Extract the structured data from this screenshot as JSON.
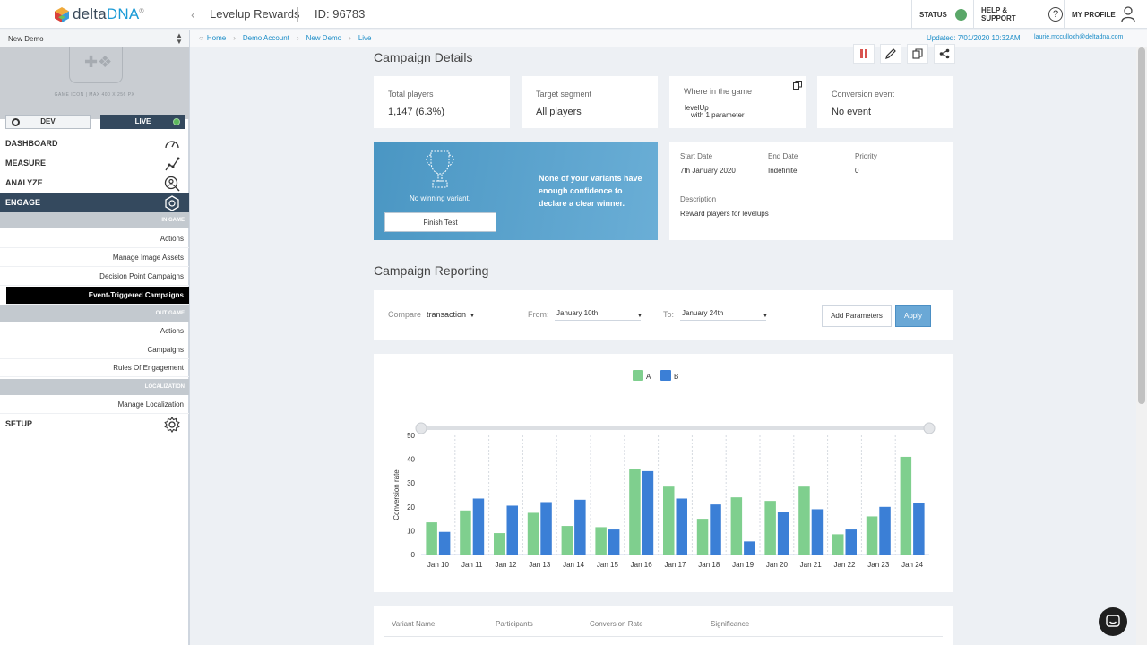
{
  "header": {
    "logo": {
      "prefix": "delta",
      "suffix": "DNA",
      "mark": "®"
    },
    "app_title": "Levelup Rewards",
    "app_id": "ID: 96783",
    "status_label": "STATUS",
    "status_color": "#5aa769",
    "help_label": "HELP & SUPPORT",
    "profile_label": "MY PROFILE"
  },
  "subbar": {
    "breadcrumbs": [
      "Home",
      "Demo Account",
      "New Demo",
      "Live"
    ],
    "updated": "Updated: 7/01/2020 10:32AM",
    "user_email": "laurie.mcculloch@deltadna.com"
  },
  "sidebar": {
    "game_name": "New Demo",
    "game_icon_caption": "GAME ICON  |  MAX 400 X 256 PX",
    "env_dev": "DEV",
    "env_live": "LIVE",
    "nav": {
      "dashboard": "DASHBOARD",
      "measure": "MEASURE",
      "analyze": "ANALYZE",
      "engage": "ENGAGE",
      "setup": "SETUP"
    },
    "sections": {
      "in_game": "IN GAME",
      "out_game": "OUT GAME",
      "localization": "LOCALIZATION"
    },
    "in_game_items": [
      "Actions",
      "Manage Image Assets",
      "Decision Point Campaigns",
      "Event-Triggered Campaigns"
    ],
    "out_game_items": [
      "Actions",
      "Campaigns",
      "Rules Of Engagement"
    ],
    "localization_items": [
      "Manage Localization"
    ]
  },
  "details": {
    "title": "Campaign Details",
    "total_players_label": "Total players",
    "total_players_value": "1,147 (6.3%)",
    "target_segment_label": "Target segment",
    "target_segment_value": "All players",
    "where_label": "Where in the game",
    "where_event": "levelUp",
    "where_params": "with 1 parameter",
    "conversion_label": "Conversion event",
    "conversion_value": "No event",
    "no_winner": "No winning variant.",
    "finish_test": "Finish Test",
    "winner_message": "None of your variants have enough confidence to declare a clear winner.",
    "start_date_label": "Start Date",
    "start_date_value": "7th January 2020",
    "end_date_label": "End Date",
    "end_date_value": "Indefinite",
    "priority_label": "Priority",
    "priority_value": "0",
    "description_label": "Description",
    "description_value": "Reward players for levelups"
  },
  "reporting": {
    "title": "Campaign Reporting",
    "compare_label": "Compare",
    "compare_value": "transaction",
    "from_label": "From:",
    "from_value": "January 10th",
    "to_label": "To:",
    "to_value": "January 24th",
    "add_parameters": "Add Parameters",
    "apply": "Apply"
  },
  "chart_data": {
    "type": "bar",
    "categories": [
      "Jan 10",
      "Jan 11",
      "Jan 12",
      "Jan 13",
      "Jan 14",
      "Jan 15",
      "Jan 16",
      "Jan 17",
      "Jan 18",
      "Jan 19",
      "Jan 20",
      "Jan 21",
      "Jan 22",
      "Jan 23",
      "Jan 24"
    ],
    "series": [
      {
        "name": "A",
        "color": "#7fcf8e",
        "values": [
          13.5,
          18.5,
          9,
          17.5,
          12,
          11.5,
          36,
          28.5,
          15,
          24,
          22.5,
          28.5,
          8.5,
          16,
          41
        ]
      },
      {
        "name": "B",
        "color": "#3b7fd6",
        "values": [
          9.5,
          23.5,
          20.5,
          22,
          23,
          10.5,
          35,
          23.5,
          21,
          5.5,
          18,
          19,
          10.5,
          20,
          21.5
        ]
      }
    ],
    "ylabel": "Conversion rate",
    "xlabel": "",
    "ylim": [
      0,
      50
    ],
    "yticks": [
      0,
      10,
      20,
      30,
      40,
      50
    ],
    "legend_position": "top-center",
    "grid": true
  },
  "table": {
    "headers": [
      "Variant Name",
      "Participants",
      "Conversion Rate",
      "Significance"
    ]
  }
}
